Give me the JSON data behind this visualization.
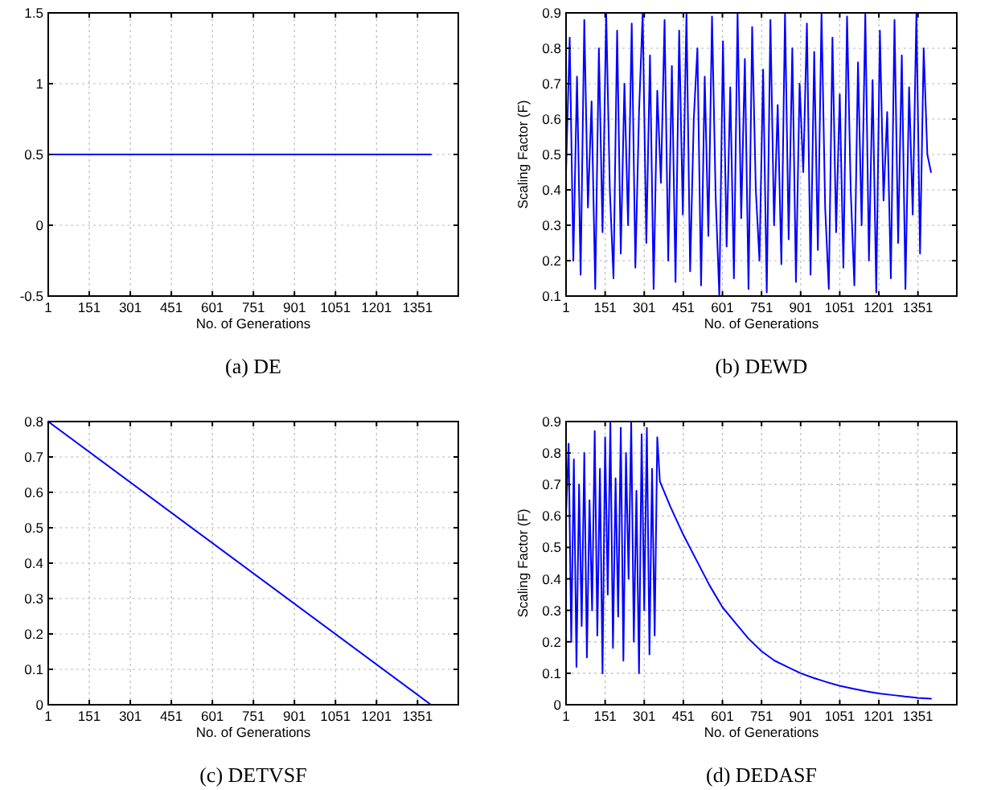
{
  "chart_data": [
    {
      "type": "line",
      "title": "(a)  DE",
      "xlabel": "No. of Generations",
      "xlim": [
        1,
        1500
      ],
      "xticks": [
        1,
        151,
        301,
        451,
        601,
        751,
        901,
        1051,
        1201,
        1351
      ],
      "ylim": [
        -0.5,
        1.5
      ],
      "yticks": [
        -0.5,
        0,
        0.5,
        1,
        1.5
      ],
      "grid": true,
      "series": [
        {
          "color": "#0000ff",
          "x": [
            1,
            1400
          ],
          "values": [
            0.5,
            0.5
          ]
        }
      ]
    },
    {
      "type": "line",
      "title": "(b)  DEWD",
      "xlabel": "No. of Generations",
      "ylabel": "Scaling Factor (F)",
      "xlim": [
        1,
        1500
      ],
      "xticks": [
        1,
        151,
        301,
        451,
        601,
        751,
        901,
        1051,
        1201,
        1351
      ],
      "ylim": [
        0.1,
        0.9
      ],
      "yticks": [
        0.1,
        0.2,
        0.3,
        0.4,
        0.5,
        0.6,
        0.7,
        0.8,
        0.9
      ],
      "grid": true,
      "series": [
        {
          "color": "#0000ff",
          "x": [
            1,
            15,
            29,
            43,
            57,
            71,
            85,
            99,
            113,
            127,
            141,
            155,
            169,
            183,
            197,
            211,
            225,
            239,
            253,
            267,
            281,
            295,
            309,
            323,
            337,
            351,
            365,
            379,
            393,
            407,
            421,
            435,
            449,
            463,
            477,
            491,
            505,
            519,
            533,
            547,
            561,
            575,
            589,
            603,
            617,
            631,
            645,
            659,
            673,
            687,
            701,
            715,
            729,
            743,
            757,
            771,
            785,
            799,
            813,
            827,
            841,
            855,
            869,
            883,
            897,
            911,
            925,
            939,
            953,
            967,
            981,
            995,
            1009,
            1023,
            1037,
            1051,
            1065,
            1079,
            1093,
            1107,
            1121,
            1135,
            1149,
            1163,
            1177,
            1191,
            1205,
            1219,
            1233,
            1247,
            1261,
            1275,
            1289,
            1303,
            1317,
            1331,
            1345,
            1359,
            1373,
            1387,
            1401
          ],
          "values": [
            0.45,
            0.83,
            0.2,
            0.72,
            0.16,
            0.88,
            0.35,
            0.65,
            0.12,
            0.8,
            0.28,
            0.9,
            0.4,
            0.15,
            0.85,
            0.22,
            0.7,
            0.3,
            0.87,
            0.18,
            0.62,
            0.9,
            0.25,
            0.78,
            0.12,
            0.68,
            0.42,
            0.88,
            0.2,
            0.75,
            0.14,
            0.85,
            0.33,
            0.9,
            0.17,
            0.6,
            0.8,
            0.13,
            0.72,
            0.27,
            0.89,
            0.38,
            0.1,
            0.82,
            0.24,
            0.69,
            0.15,
            0.9,
            0.32,
            0.77,
            0.12,
            0.86,
            0.4,
            0.2,
            0.74,
            0.11,
            0.88,
            0.3,
            0.64,
            0.19,
            0.9,
            0.26,
            0.8,
            0.14,
            0.7,
            0.45,
            0.87,
            0.16,
            0.79,
            0.23,
            0.9,
            0.35,
            0.12,
            0.83,
            0.28,
            0.67,
            0.18,
            0.89,
            0.4,
            0.13,
            0.76,
            0.3,
            0.9,
            0.2,
            0.71,
            0.11,
            0.85,
            0.37,
            0.62,
            0.15,
            0.88,
            0.25,
            0.78,
            0.12,
            0.69,
            0.33,
            0.9,
            0.22,
            0.8,
            0.5,
            0.45
          ]
        }
      ]
    },
    {
      "type": "line",
      "title": "(c)  DETVSF",
      "xlabel": "No. of Generations",
      "xlim": [
        1,
        1500
      ],
      "xticks": [
        1,
        151,
        301,
        451,
        601,
        751,
        901,
        1051,
        1201,
        1351
      ],
      "ylim": [
        0,
        0.8
      ],
      "yticks": [
        0,
        0.1,
        0.2,
        0.3,
        0.4,
        0.5,
        0.6,
        0.7,
        0.8
      ],
      "grid": true,
      "series": [
        {
          "color": "#0000ff",
          "x": [
            1,
            1400
          ],
          "values": [
            0.8,
            0
          ]
        }
      ]
    },
    {
      "type": "line",
      "title": "(d)  DEDASF",
      "xlabel": "No. of Generations",
      "ylabel": "Scaling Factor (F)",
      "xlim": [
        1,
        1500
      ],
      "xticks": [
        1,
        151,
        301,
        451,
        601,
        751,
        901,
        1051,
        1201,
        1351
      ],
      "ylim": [
        0,
        0.9
      ],
      "yticks": [
        0,
        0.1,
        0.2,
        0.3,
        0.4,
        0.5,
        0.6,
        0.7,
        0.8,
        0.9
      ],
      "grid": true,
      "series": [
        {
          "color": "#0000ff",
          "x": [
            1,
            11,
            21,
            31,
            41,
            51,
            61,
            71,
            81,
            91,
            101,
            111,
            121,
            131,
            141,
            151,
            161,
            171,
            181,
            191,
            201,
            211,
            221,
            231,
            241,
            251,
            261,
            271,
            281,
            291,
            301,
            311,
            321,
            331,
            341,
            351,
            361,
            401,
            451,
            501,
            551,
            601,
            651,
            701,
            751,
            801,
            851,
            901,
            951,
            1001,
            1051,
            1101,
            1151,
            1201,
            1251,
            1301,
            1351,
            1401
          ],
          "values": [
            0.6,
            0.83,
            0.2,
            0.78,
            0.12,
            0.7,
            0.25,
            0.8,
            0.15,
            0.65,
            0.3,
            0.87,
            0.22,
            0.75,
            0.1,
            0.85,
            0.35,
            0.9,
            0.18,
            0.72,
            0.28,
            0.88,
            0.14,
            0.8,
            0.4,
            0.9,
            0.2,
            0.68,
            0.1,
            0.86,
            0.3,
            0.88,
            0.16,
            0.75,
            0.22,
            0.85,
            0.71,
            0.63,
            0.54,
            0.46,
            0.38,
            0.31,
            0.26,
            0.21,
            0.17,
            0.14,
            0.12,
            0.1,
            0.085,
            0.072,
            0.06,
            0.051,
            0.043,
            0.036,
            0.031,
            0.026,
            0.022,
            0.019
          ]
        }
      ]
    }
  ]
}
